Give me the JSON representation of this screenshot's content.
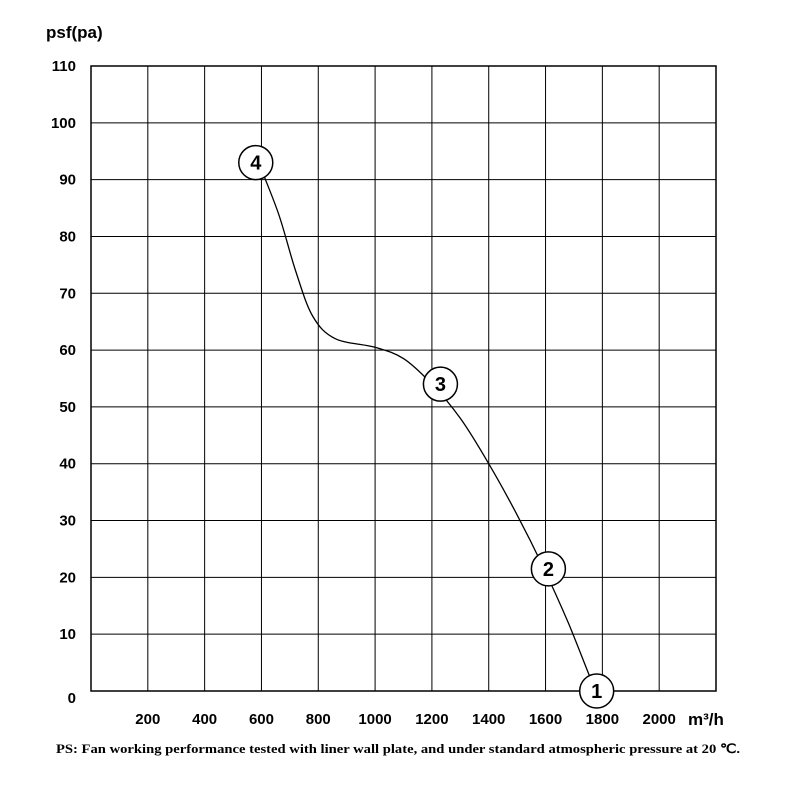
{
  "chart_data": {
    "type": "line",
    "ylabel": "psf(pa)",
    "xlabel": "m³/h",
    "xlim": [
      0,
      2200
    ],
    "ylim": [
      0,
      110
    ],
    "grid": true,
    "x_ticks": [
      {
        "value": 200,
        "label": "200"
      },
      {
        "value": 400,
        "label": "400"
      },
      {
        "value": 600,
        "label": "600"
      },
      {
        "value": 800,
        "label": "800"
      },
      {
        "value": 1000,
        "label": "1000"
      },
      {
        "value": 1200,
        "label": "1200"
      },
      {
        "value": 1400,
        "label": "1400"
      },
      {
        "value": 1600,
        "label": "1600"
      },
      {
        "value": 1800,
        "label": "1800"
      },
      {
        "value": 2000,
        "label": "2000"
      }
    ],
    "y_ticks": [
      {
        "value": 0,
        "label": "0"
      },
      {
        "value": 10,
        "label": "10"
      },
      {
        "value": 20,
        "label": "20"
      },
      {
        "value": 30,
        "label": "30"
      },
      {
        "value": 40,
        "label": "40"
      },
      {
        "value": 50,
        "label": "50"
      },
      {
        "value": 60,
        "label": "60"
      },
      {
        "value": 70,
        "label": "70"
      },
      {
        "value": 80,
        "label": "80"
      },
      {
        "value": 90,
        "label": "90"
      },
      {
        "value": 100,
        "label": "100"
      },
      {
        "value": 110,
        "label": "110"
      }
    ],
    "series": [
      {
        "points": [
          {
            "x": 590,
            "y": 93
          },
          {
            "x": 660,
            "y": 84
          },
          {
            "x": 720,
            "y": 74
          },
          {
            "x": 780,
            "y": 66
          },
          {
            "x": 860,
            "y": 62
          },
          {
            "x": 1000,
            "y": 60.5
          },
          {
            "x": 1100,
            "y": 58.5
          },
          {
            "x": 1200,
            "y": 54
          },
          {
            "x": 1300,
            "y": 48
          },
          {
            "x": 1400,
            "y": 40
          },
          {
            "x": 1500,
            "y": 31
          },
          {
            "x": 1590,
            "y": 22
          },
          {
            "x": 1680,
            "y": 12
          },
          {
            "x": 1760,
            "y": 2
          },
          {
            "x": 1780,
            "y": 0
          }
        ]
      }
    ],
    "markers": [
      {
        "label": "1",
        "x": 1780,
        "y": 0
      },
      {
        "label": "2",
        "x": 1610,
        "y": 21.5
      },
      {
        "label": "3",
        "x": 1230,
        "y": 54
      },
      {
        "label": "4",
        "x": 580,
        "y": 93
      }
    ],
    "footnote": "PS: Fan working performance tested with liner wall plate, and under standard atmospheric pressure at 20 ℃."
  }
}
